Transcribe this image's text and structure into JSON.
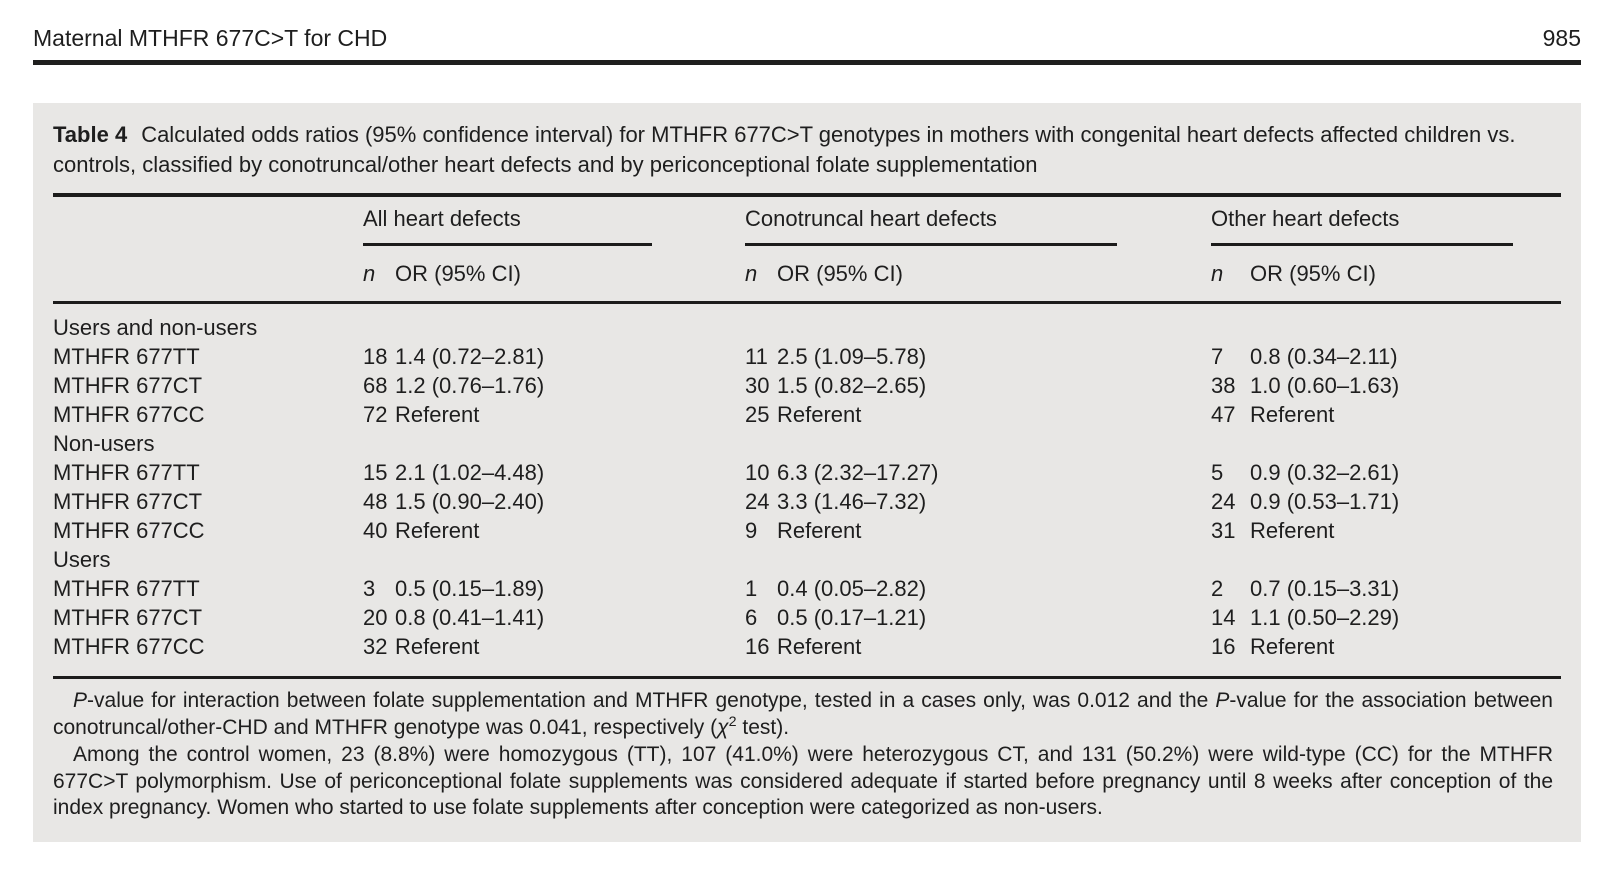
{
  "page": {
    "running_head": "Maternal MTHFR 677C>T for CHD",
    "page_number": "985"
  },
  "table": {
    "label": "Table 4",
    "caption": "Calculated odds ratios (95% confidence interval) for MTHFR 677C>T genotypes in mothers with congenital heart defects affected children vs. controls, classified by conotruncal/other heart defects and by periconceptional folate supplementation",
    "col_groups": [
      "All heart defects",
      "Conotruncal heart defects",
      "Other heart defects"
    ],
    "subheader_n": "n",
    "subheader_or": "OR (95% CI)",
    "sections": [
      {
        "label": "Users and non-users",
        "rows": [
          {
            "label": "MTHFR 677TT",
            "all_n": "18",
            "all_or": "1.4 (0.72–2.81)",
            "cono_n": "11",
            "cono_or": "2.5 (1.09–5.78)",
            "other_n": "7",
            "other_or": "0.8 (0.34–2.11)"
          },
          {
            "label": "MTHFR 677CT",
            "all_n": "68",
            "all_or": "1.2 (0.76–1.76)",
            "cono_n": "30",
            "cono_or": "1.5 (0.82–2.65)",
            "other_n": "38",
            "other_or": "1.0 (0.60–1.63)"
          },
          {
            "label": "MTHFR 677CC",
            "all_n": "72",
            "all_or": "Referent",
            "cono_n": "25",
            "cono_or": "Referent",
            "other_n": "47",
            "other_or": "Referent"
          }
        ]
      },
      {
        "label": "Non-users",
        "rows": [
          {
            "label": "MTHFR 677TT",
            "all_n": "15",
            "all_or": "2.1 (1.02–4.48)",
            "cono_n": "10",
            "cono_or": "6.3 (2.32–17.27)",
            "other_n": "5",
            "other_or": "0.9 (0.32–2.61)"
          },
          {
            "label": "MTHFR 677CT",
            "all_n": "48",
            "all_or": "1.5 (0.90–2.40)",
            "cono_n": "24",
            "cono_or": "3.3 (1.46–7.32)",
            "other_n": "24",
            "other_or": "0.9 (0.53–1.71)"
          },
          {
            "label": "MTHFR 677CC",
            "all_n": "40",
            "all_or": "Referent",
            "cono_n": "9",
            "cono_or": "Referent",
            "other_n": "31",
            "other_or": "Referent"
          }
        ]
      },
      {
        "label": "Users",
        "rows": [
          {
            "label": "MTHFR 677TT",
            "all_n": "3",
            "all_or": "0.5 (0.15–1.89)",
            "cono_n": "1",
            "cono_or": "0.4 (0.05–2.82)",
            "other_n": "2",
            "other_or": "0.7 (0.15–3.31)"
          },
          {
            "label": "MTHFR 677CT",
            "all_n": "20",
            "all_or": "0.8 (0.41–1.41)",
            "cono_n": "6",
            "cono_or": "0.5 (0.17–1.21)",
            "other_n": "14",
            "other_or": "1.1 (0.50–2.29)"
          },
          {
            "label": "MTHFR 677CC",
            "all_n": "32",
            "all_or": "Referent",
            "cono_n": "16",
            "cono_or": "Referent",
            "other_n": "16",
            "other_or": "Referent"
          }
        ]
      }
    ],
    "footnote_1_segments": [
      {
        "t": "P",
        "i": true
      },
      {
        "t": "-value for interaction between folate supplementation and MTHFR genotype, tested in a cases only, was 0.012 and the "
      },
      {
        "t": "P",
        "i": true
      },
      {
        "t": "-value for the association between conotruncal/other-CHD and MTHFR genotype was 0.041, respectively ("
      },
      {
        "t": "χ",
        "i": true
      },
      {
        "t": "2",
        "sup": true
      },
      {
        "t": " test)."
      }
    ],
    "footnote_2": "Among the control women, 23 (8.8%) were homozygous (TT), 107 (41.0%) were heterozygous CT, and 131 (50.2%) were wild-type (CC) for the MTHFR 677C>T polymorphism. Use of periconceptional folate supplements was considered adequate if started before pregnancy until 8 weeks after conception of the index pregnancy. Women who started to use folate supplements after conception were categorized as non-users."
  }
}
